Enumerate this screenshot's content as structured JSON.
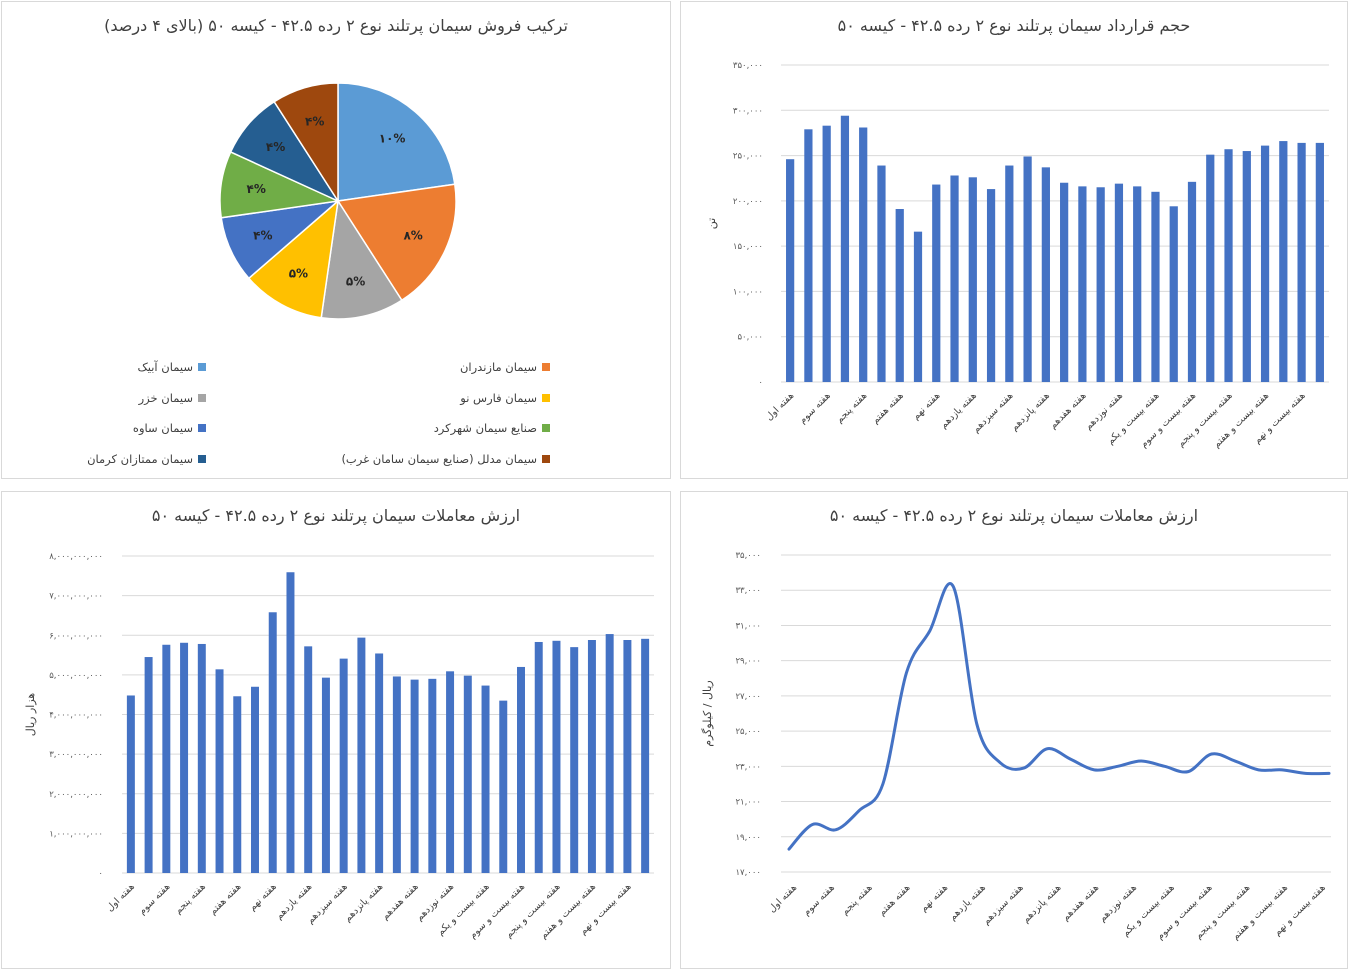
{
  "chart_data": [
    {
      "id": "pie",
      "type": "pie",
      "title": "ترکیب فروش سیمان پرتلند نوع ۲ رده ۴۲.۵ - کیسه ۵۰ (بالای ۴ درصد)",
      "legend_placement": "bottom",
      "slices": [
        {
          "name": "سیمان آبیک",
          "value": 10,
          "label": "۱۰%",
          "color": "#5B9BD5"
        },
        {
          "name": "سیمان مازندران",
          "value": 8,
          "label": "۸%",
          "color": "#ED7D31"
        },
        {
          "name": "سیمان خزر",
          "value": 5,
          "label": "۵%",
          "color": "#A5A5A5"
        },
        {
          "name": "سیمان فارس نو",
          "value": 5,
          "label": "۵%",
          "color": "#FFC000"
        },
        {
          "name": "سیمان ساوه",
          "value": 4,
          "label": "۴%",
          "color": "#4472C4"
        },
        {
          "name": "صنایع سیمان شهرکرد",
          "value": 4,
          "label": "۴%",
          "color": "#70AD47"
        },
        {
          "name": "سیمان ممتازان کرمان",
          "value": 4,
          "label": "۴%",
          "color": "#255E91"
        },
        {
          "name": "سیمان مدلل (صنایع سیمان سامان غرب)",
          "value": 4,
          "label": "۴%",
          "color": "#9E480E"
        }
      ]
    },
    {
      "id": "volume",
      "type": "bar",
      "title": "حجم قرارداد سیمان پرتلند نوع ۲ رده ۴۲.۵ - کیسه ۵۰",
      "ylabel": "تن",
      "ylim": [
        0,
        350000
      ],
      "yticks": [
        0,
        50000,
        100000,
        150000,
        200000,
        250000,
        300000,
        350000
      ],
      "ytick_labels": [
        "۰",
        "۵۰,۰۰۰",
        "۱۰۰,۰۰۰",
        "۱۵۰,۰۰۰",
        "۲۰۰,۰۰۰",
        "۲۵۰,۰۰۰",
        "۳۰۰,۰۰۰",
        "۳۵۰,۰۰۰"
      ],
      "grid": true,
      "color": "#4472C4",
      "category_labels": [
        "هفته اول",
        "هفته سوم",
        "هفته پنجم",
        "هفته هفتم",
        "هفته نهم",
        "هفته یازدهم",
        "هفته سیزدهم",
        "هفته پانزدهم",
        "هفته هفدهم",
        "هفته نوزدهم",
        "هفته بیست و یکم",
        "هفته بیست و سوم",
        "هفته بیست و پنجم",
        "هفته بیست و هفتم",
        "هفته بیست و نهم"
      ],
      "values": [
        246000,
        279000,
        283000,
        294000,
        281000,
        239000,
        191000,
        166000,
        218000,
        228000,
        226000,
        213000,
        239000,
        249000,
        237000,
        220000,
        216000,
        215000,
        219000,
        216000,
        210000,
        194000,
        221000,
        251000,
        257000,
        255000,
        261000,
        266000,
        264000,
        264000
      ]
    },
    {
      "id": "value",
      "type": "bar",
      "title": "ارزش معاملات سیمان پرتلند نوع ۲ رده ۴۲.۵ - کیسه ۵۰",
      "ylabel": "هزار ریال",
      "ylim": [
        0,
        8000000000
      ],
      "yticks": [
        0,
        1000000000,
        2000000000,
        3000000000,
        4000000000,
        5000000000,
        6000000000,
        7000000000,
        8000000000
      ],
      "ytick_labels": [
        "۰",
        "۱,۰۰۰,۰۰۰,۰۰۰",
        "۲,۰۰۰,۰۰۰,۰۰۰",
        "۳,۰۰۰,۰۰۰,۰۰۰",
        "۴,۰۰۰,۰۰۰,۰۰۰",
        "۵,۰۰۰,۰۰۰,۰۰۰",
        "۶,۰۰۰,۰۰۰,۰۰۰",
        "۷,۰۰۰,۰۰۰,۰۰۰",
        "۸,۰۰۰,۰۰۰,۰۰۰"
      ],
      "grid": true,
      "color": "#4472C4",
      "category_labels": [
        "هفته اول",
        "هفته سوم",
        "هفته پنجم",
        "هفته هفتم",
        "هفته نهم",
        "هفته یازدهم",
        "هفته سیزدهم",
        "هفته پانزدهم",
        "هفته هفدهم",
        "هفته نوزدهم",
        "هفته بیست و یکم",
        "هفته بیست و سوم",
        "هفته بیست و پنجم",
        "هفته بیست و هفتم",
        "هفته بیست و نهم"
      ],
      "values": [
        4480000000,
        5450000000,
        5760000000,
        5810000000,
        5780000000,
        5140000000,
        4460000000,
        4700000000,
        6580000000,
        7590000000,
        5720000000,
        4930000000,
        5410000000,
        5940000000,
        5540000000,
        4960000000,
        4880000000,
        4900000000,
        5090000000,
        4980000000,
        4730000000,
        4350000000,
        5200000000,
        5830000000,
        5860000000,
        5700000000,
        5880000000,
        6030000000,
        5880000000,
        5910000000
      ]
    },
    {
      "id": "price",
      "type": "line",
      "title": "ارزش معاملات سیمان پرتلند نوع ۲ رده ۴۲.۵ - کیسه ۵۰",
      "ylabel": "ریال / کیلوگرم",
      "ylim": [
        17000,
        35000
      ],
      "yticks": [
        17000,
        19000,
        21000,
        23000,
        25000,
        27000,
        29000,
        31000,
        33000,
        35000
      ],
      "ytick_labels": [
        "۱۷,۰۰۰",
        "۱۹,۰۰۰",
        "۲۱,۰۰۰",
        "۲۳,۰۰۰",
        "۲۵,۰۰۰",
        "۲۷,۰۰۰",
        "۲۹,۰۰۰",
        "۳۱,۰۰۰",
        "۳۳,۰۰۰",
        "۳۵,۰۰۰"
      ],
      "grid": true,
      "color": "#4472C4",
      "category_labels": [
        "هفته اول",
        "هفته سوم",
        "هفته پنجم",
        "هفته هفتم",
        "هفته نهم",
        "هفته یازدهم",
        "هفته سیزدهم",
        "هفته پانزدهم",
        "هفته هفدهم",
        "هفته نوزدهم",
        "هفته بیست و یکم",
        "هفته بیست و سوم",
        "هفته بیست و پنجم",
        "هفته بیست و هفتم",
        "هفته بیست و نهم"
      ],
      "values": [
        18300,
        19700,
        19400,
        20500,
        22000,
        28300,
        30700,
        33200,
        25400,
        23200,
        22900,
        24000,
        23400,
        22800,
        23000,
        23300,
        23000,
        22700,
        23700,
        23300,
        22800,
        22800,
        22600,
        22600
      ]
    }
  ]
}
